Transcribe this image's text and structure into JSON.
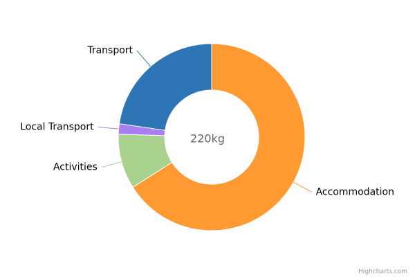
{
  "chart_data": {
    "type": "pie",
    "center_label": "220kg",
    "categories": [
      "Accommodation",
      "Activities",
      "Local Transport",
      "Transport"
    ],
    "values": [
      66,
      9.5,
      1.8,
      22.7
    ],
    "colors": [
      "#ff9a33",
      "#a9d18e",
      "#a87ff0",
      "#2e75b6"
    ],
    "credits": "Highcharts.com"
  }
}
